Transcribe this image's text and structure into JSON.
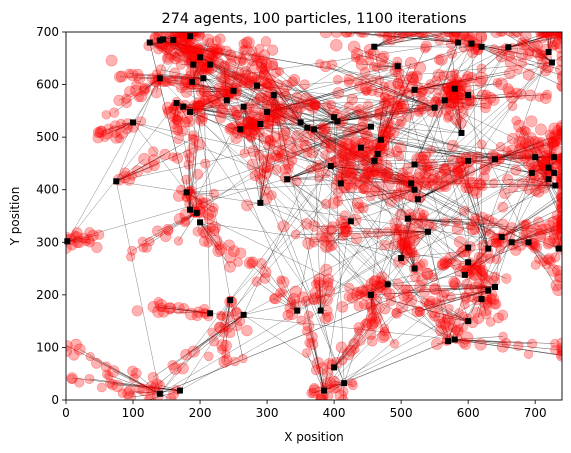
{
  "chart_data": {
    "type": "scatter",
    "title": "274 agents, 100 particles, 1100 iterations",
    "xlabel": "X position",
    "ylabel": "Y position",
    "xlim": [
      0,
      740
    ],
    "ylim": [
      0,
      700
    ],
    "x_ticks": [
      0,
      100,
      200,
      300,
      400,
      500,
      600,
      700
    ],
    "y_ticks": [
      0,
      100,
      200,
      300,
      400,
      500,
      600,
      700
    ],
    "grid": false,
    "colors": {
      "particle": "#ff0000",
      "agent": "#000000",
      "link": "#000000"
    },
    "series": [
      {
        "name": "",
        "marker": "circle",
        "color": "#ff0000",
        "alpha": 0.3
      },
      {
        "name": "",
        "marker": "square",
        "color": "#000000"
      }
    ],
    "agents": [
      [
        2,
        302
      ],
      [
        75,
        416
      ],
      [
        100,
        528
      ],
      [
        125,
        680
      ],
      [
        140,
        684
      ],
      [
        145,
        686
      ],
      [
        160,
        685
      ],
      [
        185,
        692
      ],
      [
        140,
        612
      ],
      [
        190,
        638
      ],
      [
        200,
        652
      ],
      [
        215,
        638
      ],
      [
        205,
        612
      ],
      [
        165,
        565
      ],
      [
        175,
        558
      ],
      [
        185,
        548
      ],
      [
        188,
        605
      ],
      [
        180,
        395
      ],
      [
        185,
        362
      ],
      [
        195,
        356
      ],
      [
        200,
        338
      ],
      [
        250,
        588
      ],
      [
        265,
        558
      ],
      [
        285,
        598
      ],
      [
        300,
        548
      ],
      [
        350,
        528
      ],
      [
        360,
        518
      ],
      [
        370,
        515
      ],
      [
        400,
        538
      ],
      [
        405,
        530
      ],
      [
        410,
        412
      ],
      [
        425,
        340
      ],
      [
        460,
        672
      ],
      [
        495,
        635
      ],
      [
        520,
        590
      ],
      [
        550,
        556
      ],
      [
        565,
        570
      ],
      [
        580,
        592
      ],
      [
        600,
        580
      ],
      [
        585,
        680
      ],
      [
        605,
        678
      ],
      [
        620,
        672
      ],
      [
        660,
        671
      ],
      [
        720,
        662
      ],
      [
        725,
        642
      ],
      [
        700,
        462
      ],
      [
        720,
        442
      ],
      [
        728,
        432
      ],
      [
        730,
        408
      ],
      [
        728,
        462
      ],
      [
        720,
        420
      ],
      [
        695,
        432
      ],
      [
        515,
        412
      ],
      [
        520,
        400
      ],
      [
        525,
        382
      ],
      [
        510,
        345
      ],
      [
        540,
        320
      ],
      [
        600,
        290
      ],
      [
        630,
        288
      ],
      [
        650,
        310
      ],
      [
        665,
        300
      ],
      [
        690,
        300
      ],
      [
        735,
        288
      ],
      [
        600,
        262
      ],
      [
        595,
        238
      ],
      [
        620,
        192
      ],
      [
        630,
        208
      ],
      [
        640,
        215
      ],
      [
        600,
        150
      ],
      [
        570,
        112
      ],
      [
        580,
        115
      ],
      [
        500,
        270
      ],
      [
        520,
        250
      ],
      [
        480,
        220
      ],
      [
        455,
        200
      ],
      [
        380,
        170
      ],
      [
        345,
        170
      ],
      [
        265,
        162
      ],
      [
        245,
        190
      ],
      [
        400,
        62
      ],
      [
        385,
        18
      ],
      [
        415,
        32
      ],
      [
        600,
        455
      ],
      [
        640,
        458
      ],
      [
        590,
        508
      ],
      [
        470,
        495
      ],
      [
        440,
        480
      ],
      [
        465,
        468
      ],
      [
        330,
        420
      ],
      [
        395,
        445
      ],
      [
        520,
        448
      ],
      [
        455,
        520
      ],
      [
        460,
        455
      ],
      [
        140,
        12
      ],
      [
        170,
        18
      ],
      [
        215,
        165
      ],
      [
        290,
        375
      ],
      [
        260,
        515
      ],
      [
        290,
        525
      ],
      [
        240,
        570
      ],
      [
        310,
        580
      ]
    ],
    "particle_count": 100,
    "agent_count": 274,
    "iterations": 1100
  }
}
